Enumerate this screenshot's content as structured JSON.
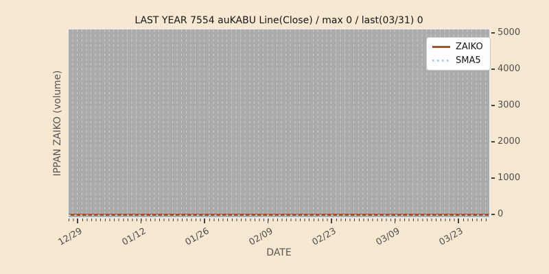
{
  "chart": {
    "title": "LAST YEAR 7554 auKABU Line(Close) / max 0 / last(03/31) 0",
    "xlabel": "DATE",
    "ylabel": "IPPAN ZAIKO (volume)"
  },
  "legend": {
    "position": "upper right",
    "items": [
      {
        "label": "ZAIKO",
        "style": "solid",
        "color": "#A0522D"
      },
      {
        "label": "SMA5",
        "style": "dotted",
        "color": "#A9CCE3"
      }
    ]
  },
  "chart_data": {
    "type": "line",
    "title": "LAST YEAR 7554 auKABU Line(Close) / max 0 / last(03/31) 0",
    "xlabel": "DATE",
    "ylabel": "IPPAN ZAIKO (volume)",
    "ylim": [
      0,
      5000
    ],
    "yticks": [
      0,
      1000,
      2000,
      3000,
      4000,
      5000
    ],
    "xtick_labels": [
      "12/29",
      "01/12",
      "01/26",
      "02/09",
      "02/23",
      "03/09",
      "03/23"
    ],
    "grid": "vertical daily dashed gridlines, no horizontal gridlines",
    "legend_position": "upper right",
    "series": [
      {
        "name": "ZAIKO",
        "line_style": "solid",
        "color": "#A0522D",
        "values": [
          0,
          0,
          0,
          0,
          0,
          0,
          0
        ]
      },
      {
        "name": "SMA5",
        "line_style": "dotted",
        "color": "#A9CCE3",
        "values": [
          0,
          0,
          0,
          0,
          0,
          0,
          0
        ]
      }
    ],
    "annotations": {
      "max": 0,
      "last_date": "03/31",
      "last_value": 0
    }
  },
  "colors": {
    "page_background": "#F8E8D2",
    "plot_background": "#ABABAB",
    "gridline": "#C9C9C9",
    "spine": "#ECECEC",
    "tick": "#3F3F3F",
    "tick_label": "#4D4D4D",
    "axis_label": "#555555",
    "title_text": "#141414",
    "zaiko_line": "#A0522D",
    "sma5_line": "#A9CCE3",
    "legend_background": "#FFFFFF"
  }
}
